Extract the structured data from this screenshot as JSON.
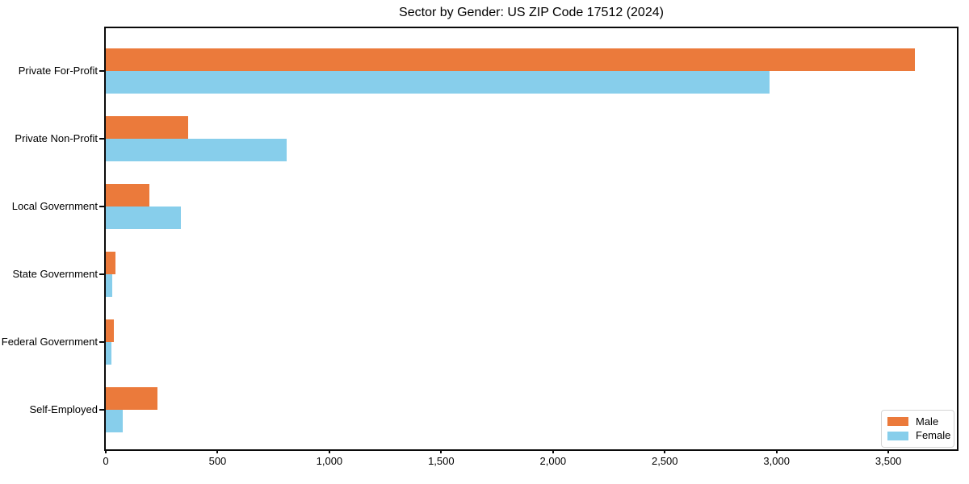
{
  "title": "Sector by Gender: US ZIP Code 17512 (2024)",
  "colors": {
    "male": "#EB7A3B",
    "female": "#87CEEB",
    "spine": "#0a0a0a",
    "text": "#000000",
    "background": "#ffffff",
    "legend_border": "#d4d4d4"
  },
  "legend": {
    "position": "lower right",
    "items": [
      {
        "label": "Male",
        "color": "#EB7A3B"
      },
      {
        "label": "Female",
        "color": "#87CEEB"
      }
    ]
  },
  "chart_data": {
    "type": "bar",
    "orientation": "horizontal",
    "title": "Sector by Gender: US ZIP Code 17512 (2024)",
    "categories": [
      "Private For-Profit",
      "Private Non-Profit",
      "Local Government",
      "State Government",
      "Federal Government",
      "Self-Employed"
    ],
    "series": [
      {
        "name": "Male",
        "color": "#EB7A3B",
        "values": [
          3620,
          370,
          195,
          45,
          35,
          230
        ]
      },
      {
        "name": "Female",
        "color": "#87CEEB",
        "values": [
          2970,
          810,
          335,
          30,
          25,
          75
        ]
      }
    ],
    "xlabel": "",
    "ylabel": "",
    "xlim": [
      0,
      3810
    ],
    "xticks": [
      0,
      500,
      1000,
      1500,
      2000,
      2500,
      3000,
      3500
    ],
    "xtick_labels": [
      "0",
      "500",
      "1,000",
      "1,500",
      "2,000",
      "2,500",
      "3,000",
      "3,500"
    ],
    "grid": false,
    "legend_position": "lower right"
  }
}
